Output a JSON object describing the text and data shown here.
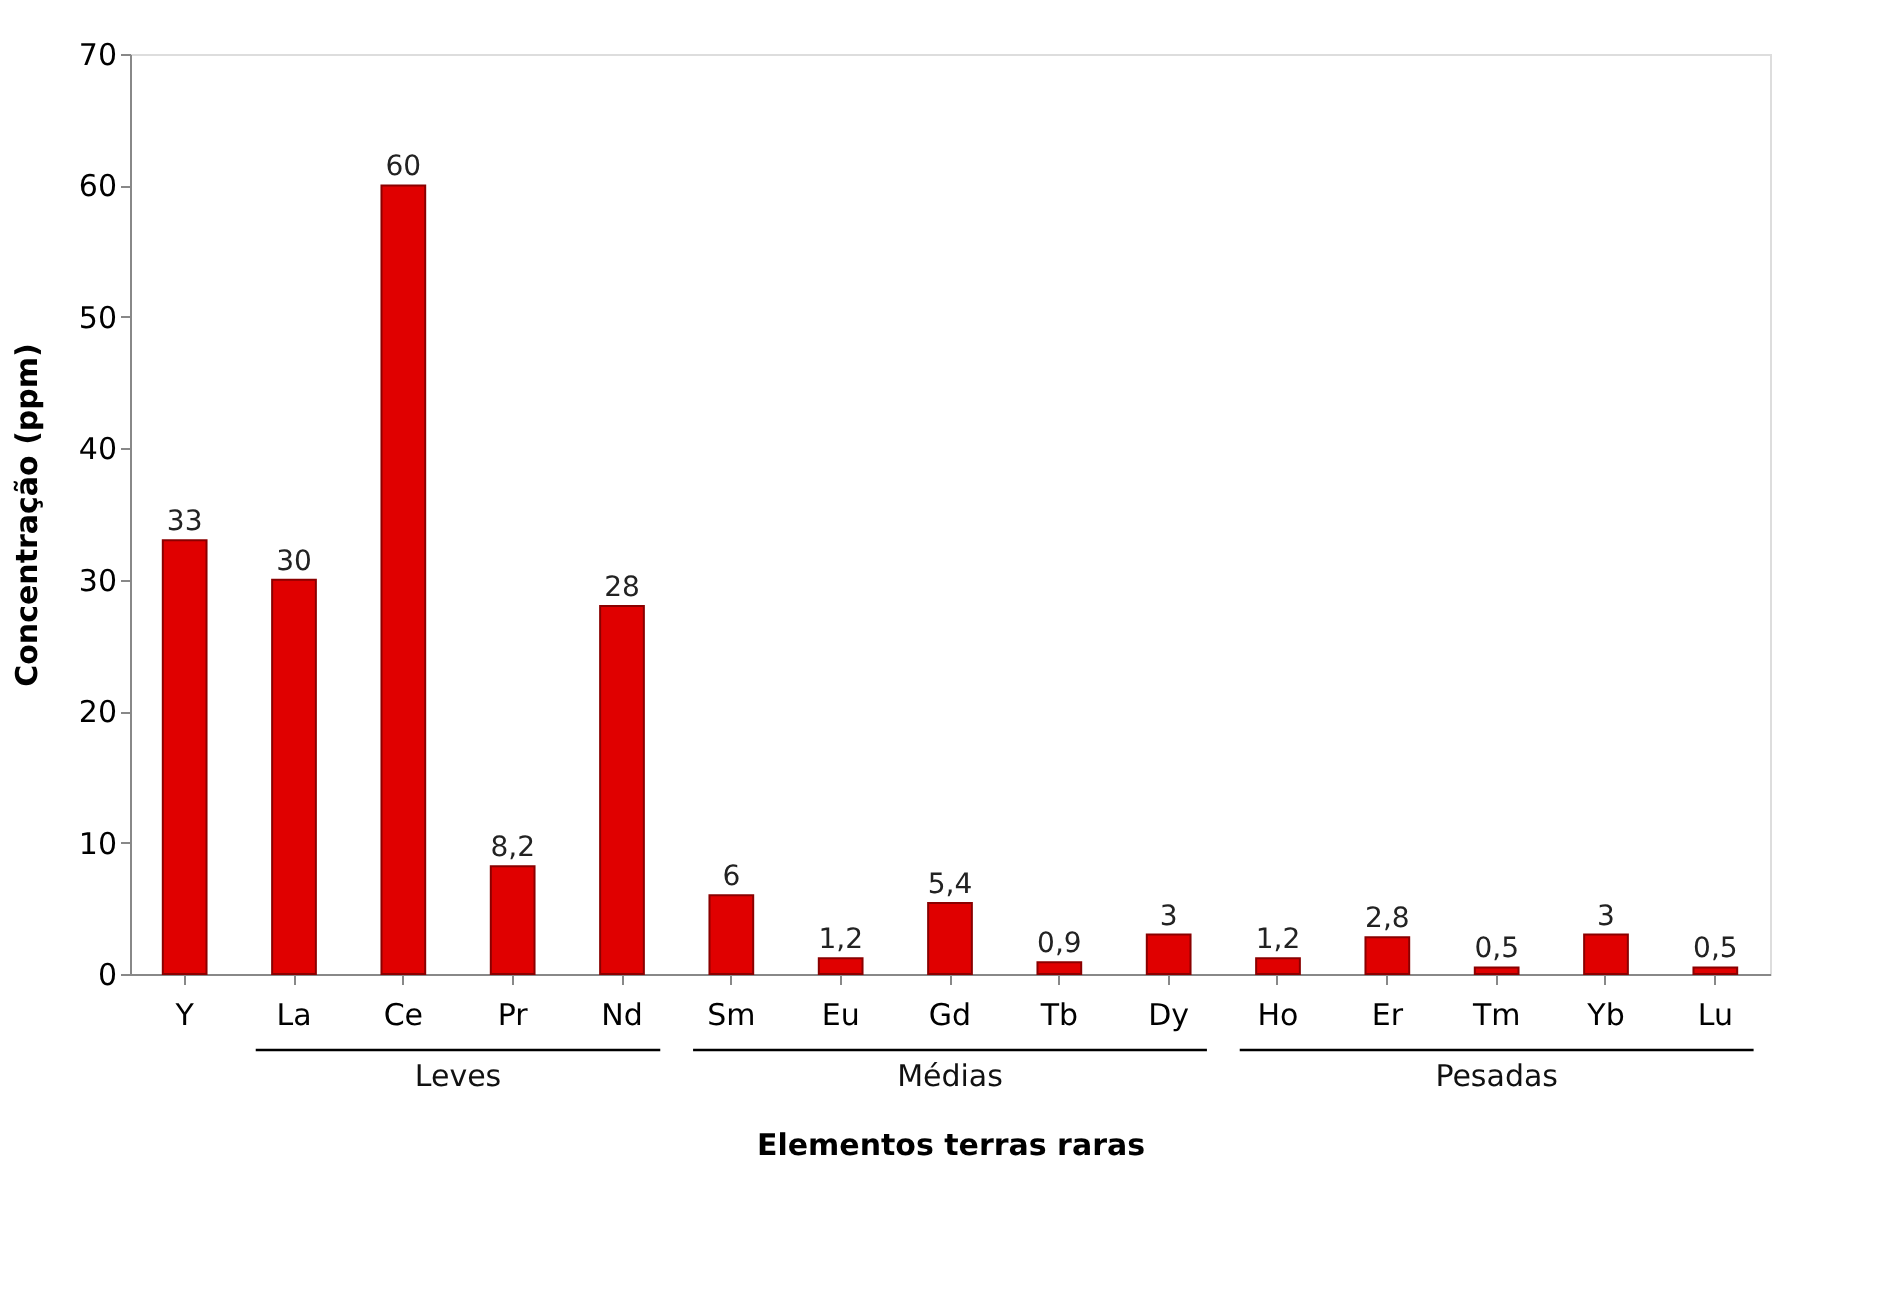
{
  "chart_data": {
    "type": "bar",
    "xlabel": "Elementos terras raras",
    "ylabel": "Concentração (ppm)",
    "categories": [
      "Y",
      "La",
      "Ce",
      "Pr",
      "Nd",
      "Sm",
      "Eu",
      "Gd",
      "Tb",
      "Dy",
      "Ho",
      "Er",
      "Tm",
      "Yb",
      "Lu"
    ],
    "values": [
      33,
      30,
      60,
      8.2,
      28,
      6,
      1.2,
      5.4,
      0.9,
      3,
      1.2,
      2.8,
      0.5,
      3,
      0.5
    ],
    "value_labels": [
      "33",
      "30",
      "60",
      "8,2",
      "28",
      "6",
      "1,2",
      "5,4",
      "0,9",
      "3",
      "1,2",
      "2,8",
      "0,5",
      "3",
      "0,5"
    ],
    "color": "#e00000",
    "ylim": [
      0,
      70
    ],
    "yticks": [
      0,
      10,
      20,
      30,
      40,
      50,
      60,
      70
    ],
    "grid": false,
    "annotations": [
      "Leves",
      "Médias",
      "Pesadas"
    ]
  }
}
